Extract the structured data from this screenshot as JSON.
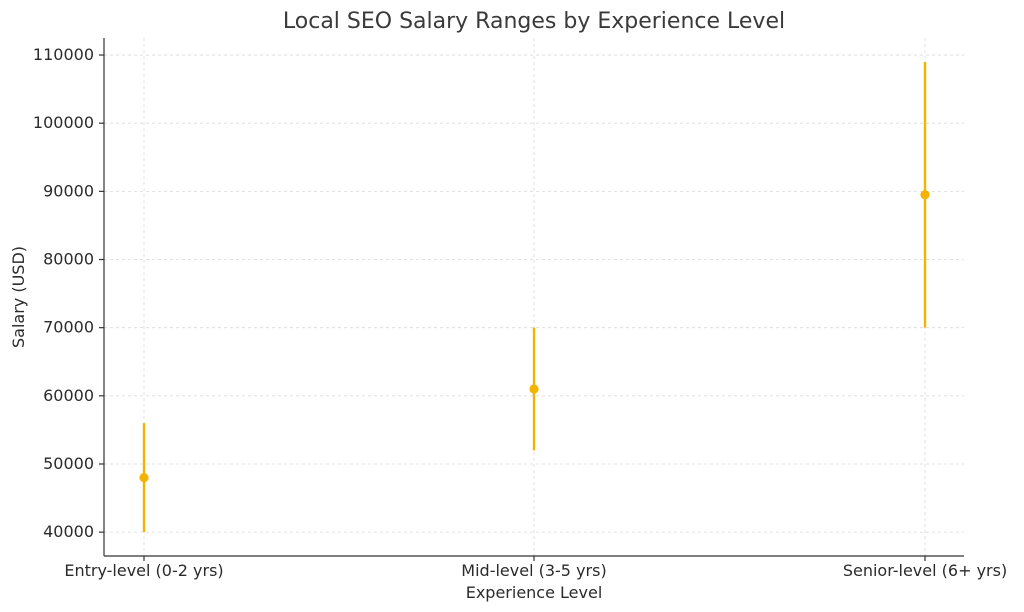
{
  "chart_data": {
    "type": "scatter",
    "title": "Local SEO Salary Ranges by Experience Level",
    "xlabel": "Experience Level",
    "ylabel": "Salary (USD)",
    "categories": [
      "Entry-level (0-2 yrs)",
      "Mid-level (3-5 yrs)",
      "Senior-level (6+ yrs)"
    ],
    "series": [
      {
        "midpoint": [
          48000,
          61000,
          89500
        ],
        "low": [
          40000,
          52000,
          70000
        ],
        "high": [
          56000,
          70000,
          109000
        ]
      }
    ],
    "ylim": [
      36500,
      112500
    ],
    "yticks": [
      40000,
      50000,
      60000,
      70000,
      80000,
      90000,
      100000,
      110000
    ],
    "grid": true,
    "legend": "none",
    "colors": {
      "marker": "#f5b301",
      "range": "#f5b301"
    }
  }
}
